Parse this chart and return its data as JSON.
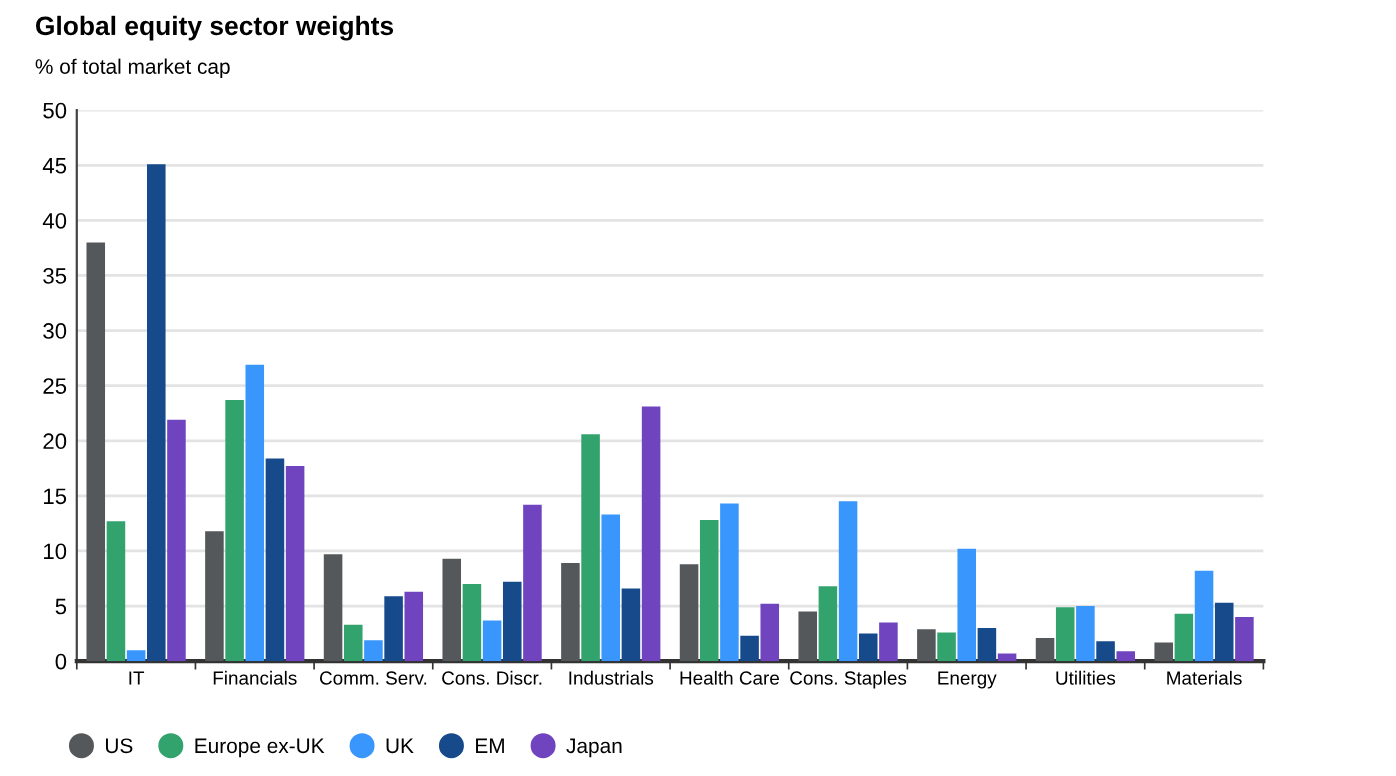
{
  "chart_data": {
    "type": "bar",
    "title": "Global equity sector weights",
    "subtitle": "% of total market cap",
    "categories": [
      "IT",
      "Financials",
      "Comm. Serv.",
      "Cons. Discr.",
      "Industrials",
      "Health Care",
      "Cons. Staples",
      "Energy",
      "Utilities",
      "Materials"
    ],
    "series": [
      {
        "name": "US",
        "color": "#54585a",
        "values": [
          38,
          11.8,
          9.7,
          9.3,
          8.9,
          8.8,
          4.5,
          2.9,
          2.1,
          1.7
        ]
      },
      {
        "name": "Europe ex-UK",
        "color": "#33a36d",
        "values": [
          12.7,
          23.7,
          3.3,
          7.0,
          20.6,
          12.8,
          6.8,
          2.6,
          4.9,
          4.3
        ]
      },
      {
        "name": "UK",
        "color": "#3896fc",
        "values": [
          1,
          26.9,
          1.9,
          3.7,
          13.3,
          14.3,
          14.5,
          10.2,
          5.0,
          8.2
        ]
      },
      {
        "name": "EM",
        "color": "#174a8b",
        "values": [
          45.1,
          18.4,
          5.9,
          7.2,
          6.6,
          2.3,
          2.5,
          3.0,
          1.8,
          5.3
        ]
      },
      {
        "name": "Japan",
        "color": "#7044bf",
        "values": [
          21.9,
          17.7,
          6.3,
          14.2,
          23.1,
          5.2,
          3.5,
          0.7,
          0.9,
          4.0
        ]
      }
    ],
    "ylim": [
      0,
      50
    ],
    "yticks": [
      0,
      5,
      10,
      15,
      20,
      25,
      30,
      35,
      40,
      45,
      50
    ],
    "grid": "y",
    "legend": "bottom left"
  }
}
